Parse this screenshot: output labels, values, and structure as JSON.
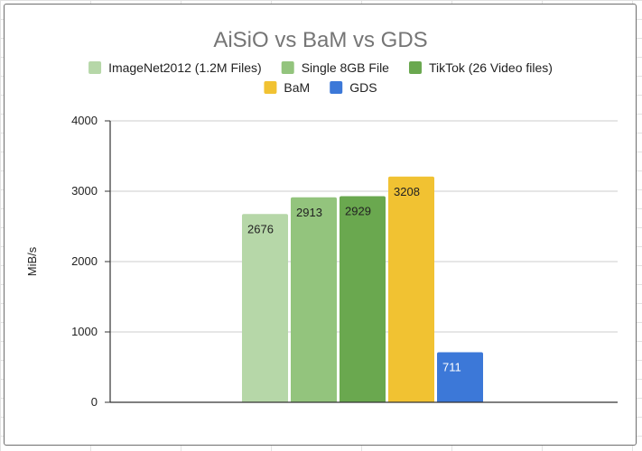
{
  "chart_data": {
    "type": "bar",
    "title": "AiSiO vs BaM vs GDS",
    "ylabel": "MiB/s",
    "xlabel": "",
    "ylim": [
      0,
      4000
    ],
    "yticks": [
      0,
      1000,
      2000,
      3000,
      4000
    ],
    "grid": true,
    "legend_position": "top",
    "series": [
      {
        "name": "ImageNet2012 (1.2M Files)",
        "value": 2676,
        "color": "#b6d7a8"
      },
      {
        "name": "Single 8GB File",
        "value": 2913,
        "color": "#93c47d"
      },
      {
        "name": "TikTok (26 Video files)",
        "value": 2929,
        "color": "#6aa84f"
      },
      {
        "name": "BaM",
        "value": 3208,
        "color": "#f1c232"
      },
      {
        "name": "GDS",
        "value": 711,
        "color": "#3c78d8"
      }
    ]
  }
}
